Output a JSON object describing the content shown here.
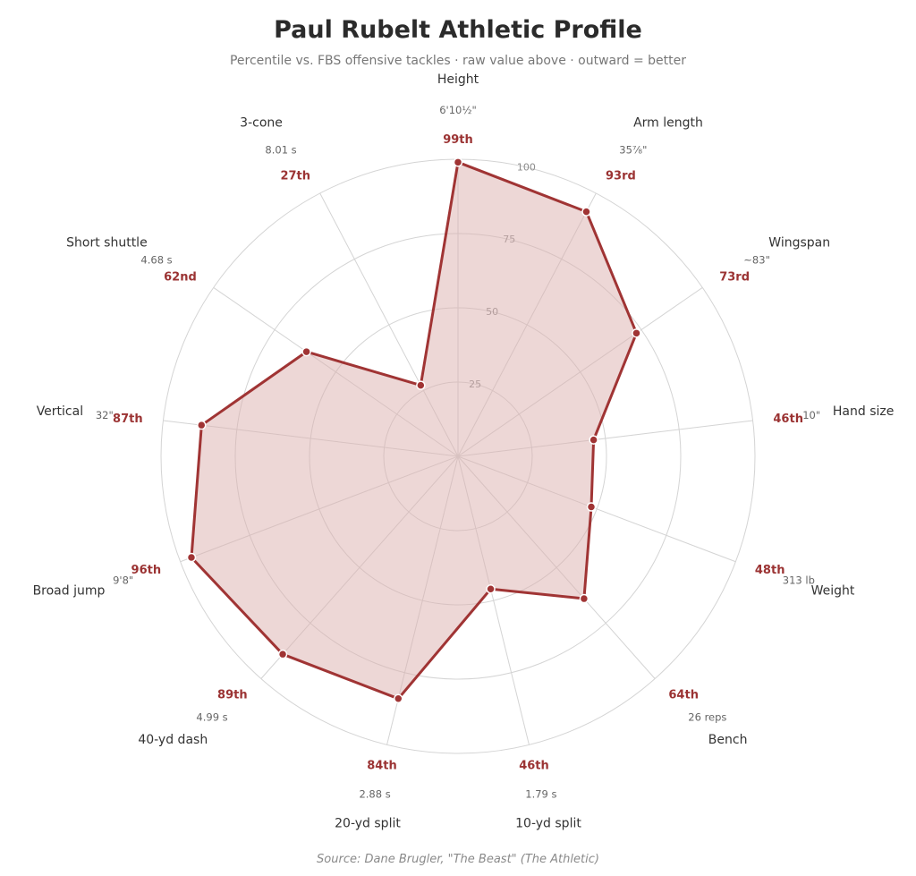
{
  "title": "Paul Rubelt Athletic Profile",
  "subtitle": "Percentile vs. FBS offensive tackles  ·  raw value above  ·  outward = better",
  "source": "Source: Dane Brugler, \"The Beast\" (The Athletic)",
  "colors": {
    "line": "#a03434",
    "fill": "#dcb0ae",
    "label": "#9b3333",
    "grid": "#d4d4d4"
  },
  "chart_data": {
    "type": "radar",
    "title": "Paul Rubelt Athletic Profile",
    "subtitle": "Percentile vs. FBS offensive tackles  ·  raw value above  ·  outward = better",
    "rlim": [
      0,
      100
    ],
    "rings": [
      25,
      50,
      75,
      100
    ],
    "grid": true,
    "axes": [
      {
        "name": "Height",
        "raw": "6'10½\"",
        "percentile": 99,
        "label": "99th"
      },
      {
        "name": "Arm length",
        "raw": "35⅞\"",
        "percentile": 93,
        "label": "93rd"
      },
      {
        "name": "Wingspan",
        "raw": "~83\"",
        "percentile": 73,
        "label": "73rd"
      },
      {
        "name": "Hand size",
        "raw": "10\"",
        "percentile": 46,
        "label": "46th"
      },
      {
        "name": "Weight",
        "raw": "313 lb",
        "percentile": 48,
        "label": "48th"
      },
      {
        "name": "Bench",
        "raw": "26 reps",
        "percentile": 64,
        "label": "64th"
      },
      {
        "name": "10-yd split",
        "raw": "1.79 s",
        "percentile": 46,
        "label": "46th"
      },
      {
        "name": "20-yd split",
        "raw": "2.88 s",
        "percentile": 84,
        "label": "84th"
      },
      {
        "name": "40-yd dash",
        "raw": "4.99 s",
        "percentile": 89,
        "label": "89th"
      },
      {
        "name": "Broad jump",
        "raw": "9'8\"",
        "percentile": 96,
        "label": "96th"
      },
      {
        "name": "Vertical",
        "raw": "32\"",
        "percentile": 87,
        "label": "87th"
      },
      {
        "name": "Short shuttle",
        "raw": "4.68 s",
        "percentile": 62,
        "label": "62nd"
      },
      {
        "name": "3-cone",
        "raw": "8.01 s",
        "percentile": 27,
        "label": "27th"
      }
    ]
  }
}
